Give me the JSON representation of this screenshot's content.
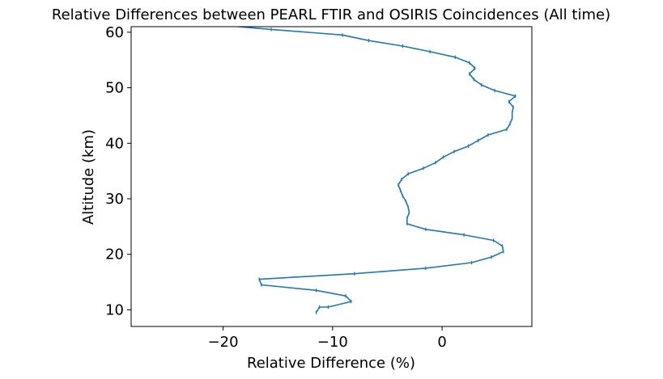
{
  "chart_data": {
    "type": "line",
    "title": "Relative Differences between PEARL FTIR and OSIRIS Coincidences (All time)",
    "xlabel": "Relative Difference (%)",
    "ylabel": "Altitude (km)",
    "xlim": [
      -28.4,
      8.2
    ],
    "ylim": [
      7.0,
      61.0
    ],
    "xticks": [
      -20,
      -10,
      0
    ],
    "xtick_labels": [
      "−20",
      "−10",
      "0"
    ],
    "yticks": [
      10,
      20,
      30,
      40,
      50,
      60
    ],
    "ytick_labels": [
      "10",
      "20",
      "30",
      "40",
      "50",
      "60"
    ],
    "grid": false,
    "legend": "none",
    "series": [
      {
        "color": "#1f77b4",
        "x": [
          -11.5,
          -11.2,
          -10.4,
          -8.3,
          -8.8,
          -11.5,
          -16.5,
          -16.7,
          -8.0,
          -1.5,
          2.7,
          4.5,
          5.6,
          5.5,
          4.7,
          2.0,
          -1.5,
          -3.2,
          -3.2,
          -3.0,
          -3.1,
          -3.3,
          -3.6,
          -3.8,
          -4.0,
          -3.7,
          -3.1,
          -1.7,
          -0.6,
          0.1,
          1.1,
          2.4,
          3.3,
          4.2,
          5.9,
          6.2,
          6.4,
          6.4,
          6.5,
          6.1,
          6.7,
          4.8,
          3.6,
          2.9,
          2.5,
          3.0,
          2.5,
          1.2,
          -1.1,
          -3.6,
          -6.7,
          -9.1,
          -15.6,
          -21.5,
          -27.0
        ],
        "y": [
          9.5,
          10.5,
          10.5,
          11.5,
          12.5,
          13.5,
          14.5,
          15.5,
          16.5,
          17.5,
          18.5,
          19.5,
          20.5,
          21.5,
          22.5,
          23.5,
          24.5,
          25.5,
          26.5,
          27.5,
          28.5,
          29.5,
          30.5,
          31.5,
          32.5,
          33.5,
          34.5,
          35.5,
          36.5,
          37.5,
          38.5,
          39.5,
          40.5,
          41.5,
          42.5,
          43.5,
          44.5,
          45.5,
          46.5,
          47.5,
          48.5,
          49.5,
          50.5,
          51.5,
          52.5,
          53.5,
          54.5,
          55.5,
          56.5,
          57.5,
          58.5,
          59.5,
          60.5,
          61.5,
          62.5
        ]
      }
    ]
  }
}
